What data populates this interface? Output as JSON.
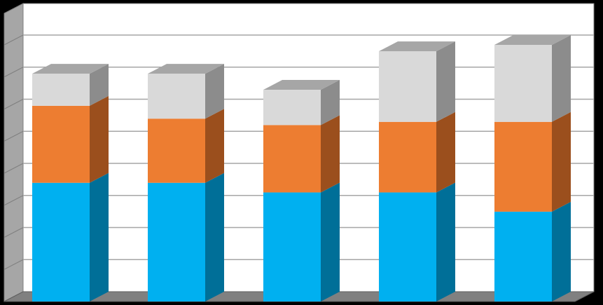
{
  "chart_data": {
    "type": "bar",
    "stacked": true,
    "three_d": true,
    "title": "",
    "xlabel": "",
    "ylabel": "",
    "categories": [
      "",
      "",
      "",
      "",
      ""
    ],
    "ylim": [
      0,
      9
    ],
    "gridlines": 9,
    "grid": true,
    "legend": "none",
    "series": [
      {
        "values": [
          3.7,
          3.7,
          3.4,
          3.4,
          2.8
        ]
      },
      {
        "values": [
          2.4,
          2.0,
          2.1,
          2.2,
          2.8
        ]
      },
      {
        "values": [
          1.0,
          1.4,
          1.1,
          2.2,
          2.4
        ]
      }
    ]
  },
  "colors": {
    "series_front": [
      "#00b0f0",
      "#ed7d31",
      "#d9d9d9"
    ],
    "series_side": [
      "#006f98",
      "#9b4f1d",
      "#8c8c8c"
    ],
    "series_top": [
      "#7fd4f5",
      "#f4b183",
      "#a6a6a6"
    ],
    "wall_back": "#ffffff",
    "wall_side": "#a6a6a6",
    "floor": "#808080",
    "frame": "#000000"
  }
}
